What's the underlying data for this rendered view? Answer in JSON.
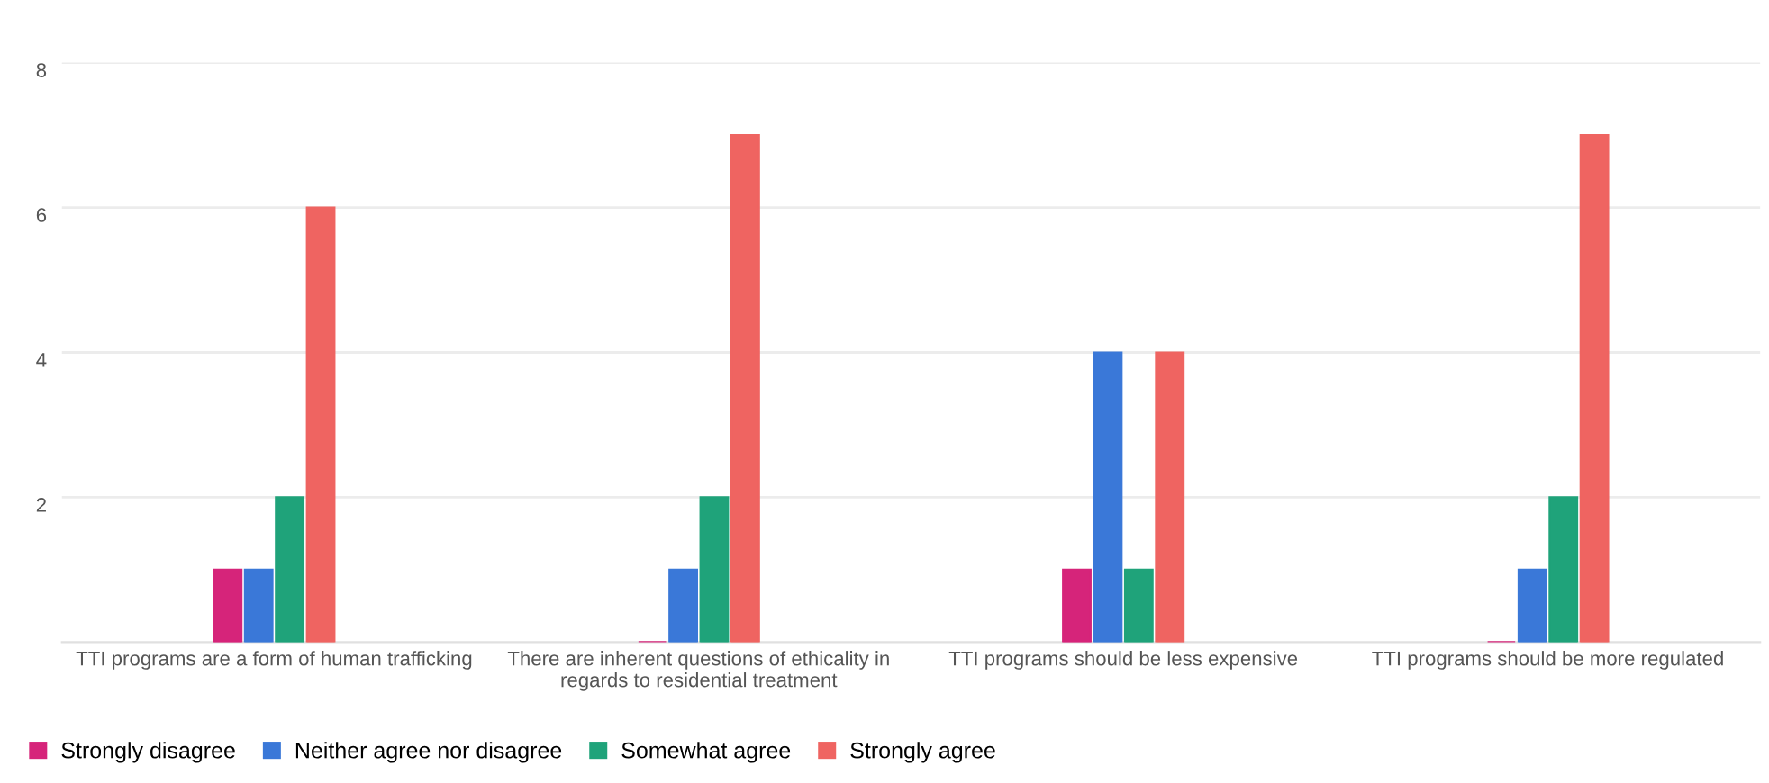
{
  "chart_data": {
    "type": "bar",
    "categories": [
      "TTI programs are a form of human trafficking",
      "There are inherent questions of ethicality in\nregards to residential treatment",
      "TTI programs should be less expensive",
      "TTI programs should be more regulated"
    ],
    "series": [
      {
        "name": "Strongly disagree",
        "color": "#d6247a",
        "values": [
          1,
          0,
          1,
          0
        ]
      },
      {
        "name": "Neither agree nor disagree",
        "color": "#3a78d8",
        "values": [
          1,
          1,
          4,
          1
        ]
      },
      {
        "name": "Somewhat agree",
        "color": "#1fa37a",
        "values": [
          2,
          2,
          1,
          2
        ]
      },
      {
        "name": "Strongly agree",
        "color": "#ef6461",
        "values": [
          6,
          7,
          4,
          7
        ]
      }
    ],
    "ylim": [
      0,
      8
    ],
    "yticks": [
      2,
      4,
      6,
      8
    ],
    "grid": "y",
    "legend": "bottom left"
  }
}
